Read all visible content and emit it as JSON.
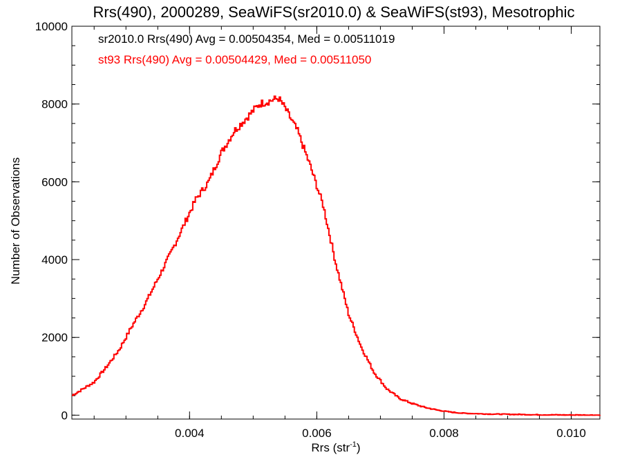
{
  "chart_data": {
    "type": "line",
    "title": "Rrs(490), 2000289, SeaWiFS(sr2010.0) & SeaWiFS(st93), Mesotrophic",
    "xlabel": "Rrs (str",
    "xlabel_sup": "-1",
    "xlabel_suffix": ")",
    "ylabel": "Number of Observations",
    "xlim": [
      0.00215,
      0.01045
    ],
    "ylim": [
      -100,
      10000
    ],
    "xticks": [
      0.004,
      0.006,
      0.008,
      0.01
    ],
    "xtick_labels": [
      "0.004",
      "0.006",
      "0.008",
      "0.010"
    ],
    "yticks": [
      0,
      2000,
      4000,
      6000,
      8000,
      10000
    ],
    "ytick_labels": [
      "0",
      "2000",
      "4000",
      "6000",
      "8000",
      "10000"
    ],
    "grid": false,
    "annotations": [
      {
        "text": "sr2010.0 Rrs(490) Avg = 0.00504354, Med = 0.00511019",
        "color": "#000000"
      },
      {
        "text": "st93 Rrs(490) Avg = 0.00504429, Med = 0.00511050",
        "color": "#ff0000"
      }
    ],
    "series": [
      {
        "color": "#ff0000",
        "style": "step",
        "x": [
          0.00215,
          0.0023,
          0.0025,
          0.0027,
          0.0029,
          0.0031,
          0.0033,
          0.0035,
          0.0037,
          0.0039,
          0.0041,
          0.0043,
          0.0045,
          0.0047,
          0.0049,
          0.0051,
          0.0053,
          0.0054,
          0.0055,
          0.0057,
          0.0059,
          0.0061,
          0.0063,
          0.0065,
          0.0067,
          0.0069,
          0.0071,
          0.0073,
          0.0075,
          0.0077,
          0.0079,
          0.0081,
          0.0083,
          0.0085,
          0.0087,
          0.0089,
          0.0091,
          0.0093,
          0.0095,
          0.0097,
          0.0099,
          0.0101,
          0.0103,
          0.01045
        ],
        "y": [
          500,
          650,
          850,
          1250,
          1700,
          2300,
          2850,
          3500,
          4150,
          4850,
          5550,
          6000,
          6750,
          7300,
          7650,
          8000,
          8100,
          8150,
          7900,
          7300,
          6400,
          5400,
          3900,
          2600,
          1750,
          1100,
          680,
          430,
          300,
          200,
          130,
          80,
          50,
          40,
          30,
          25,
          20,
          15,
          10,
          8,
          5,
          4,
          3,
          2
        ]
      }
    ]
  }
}
